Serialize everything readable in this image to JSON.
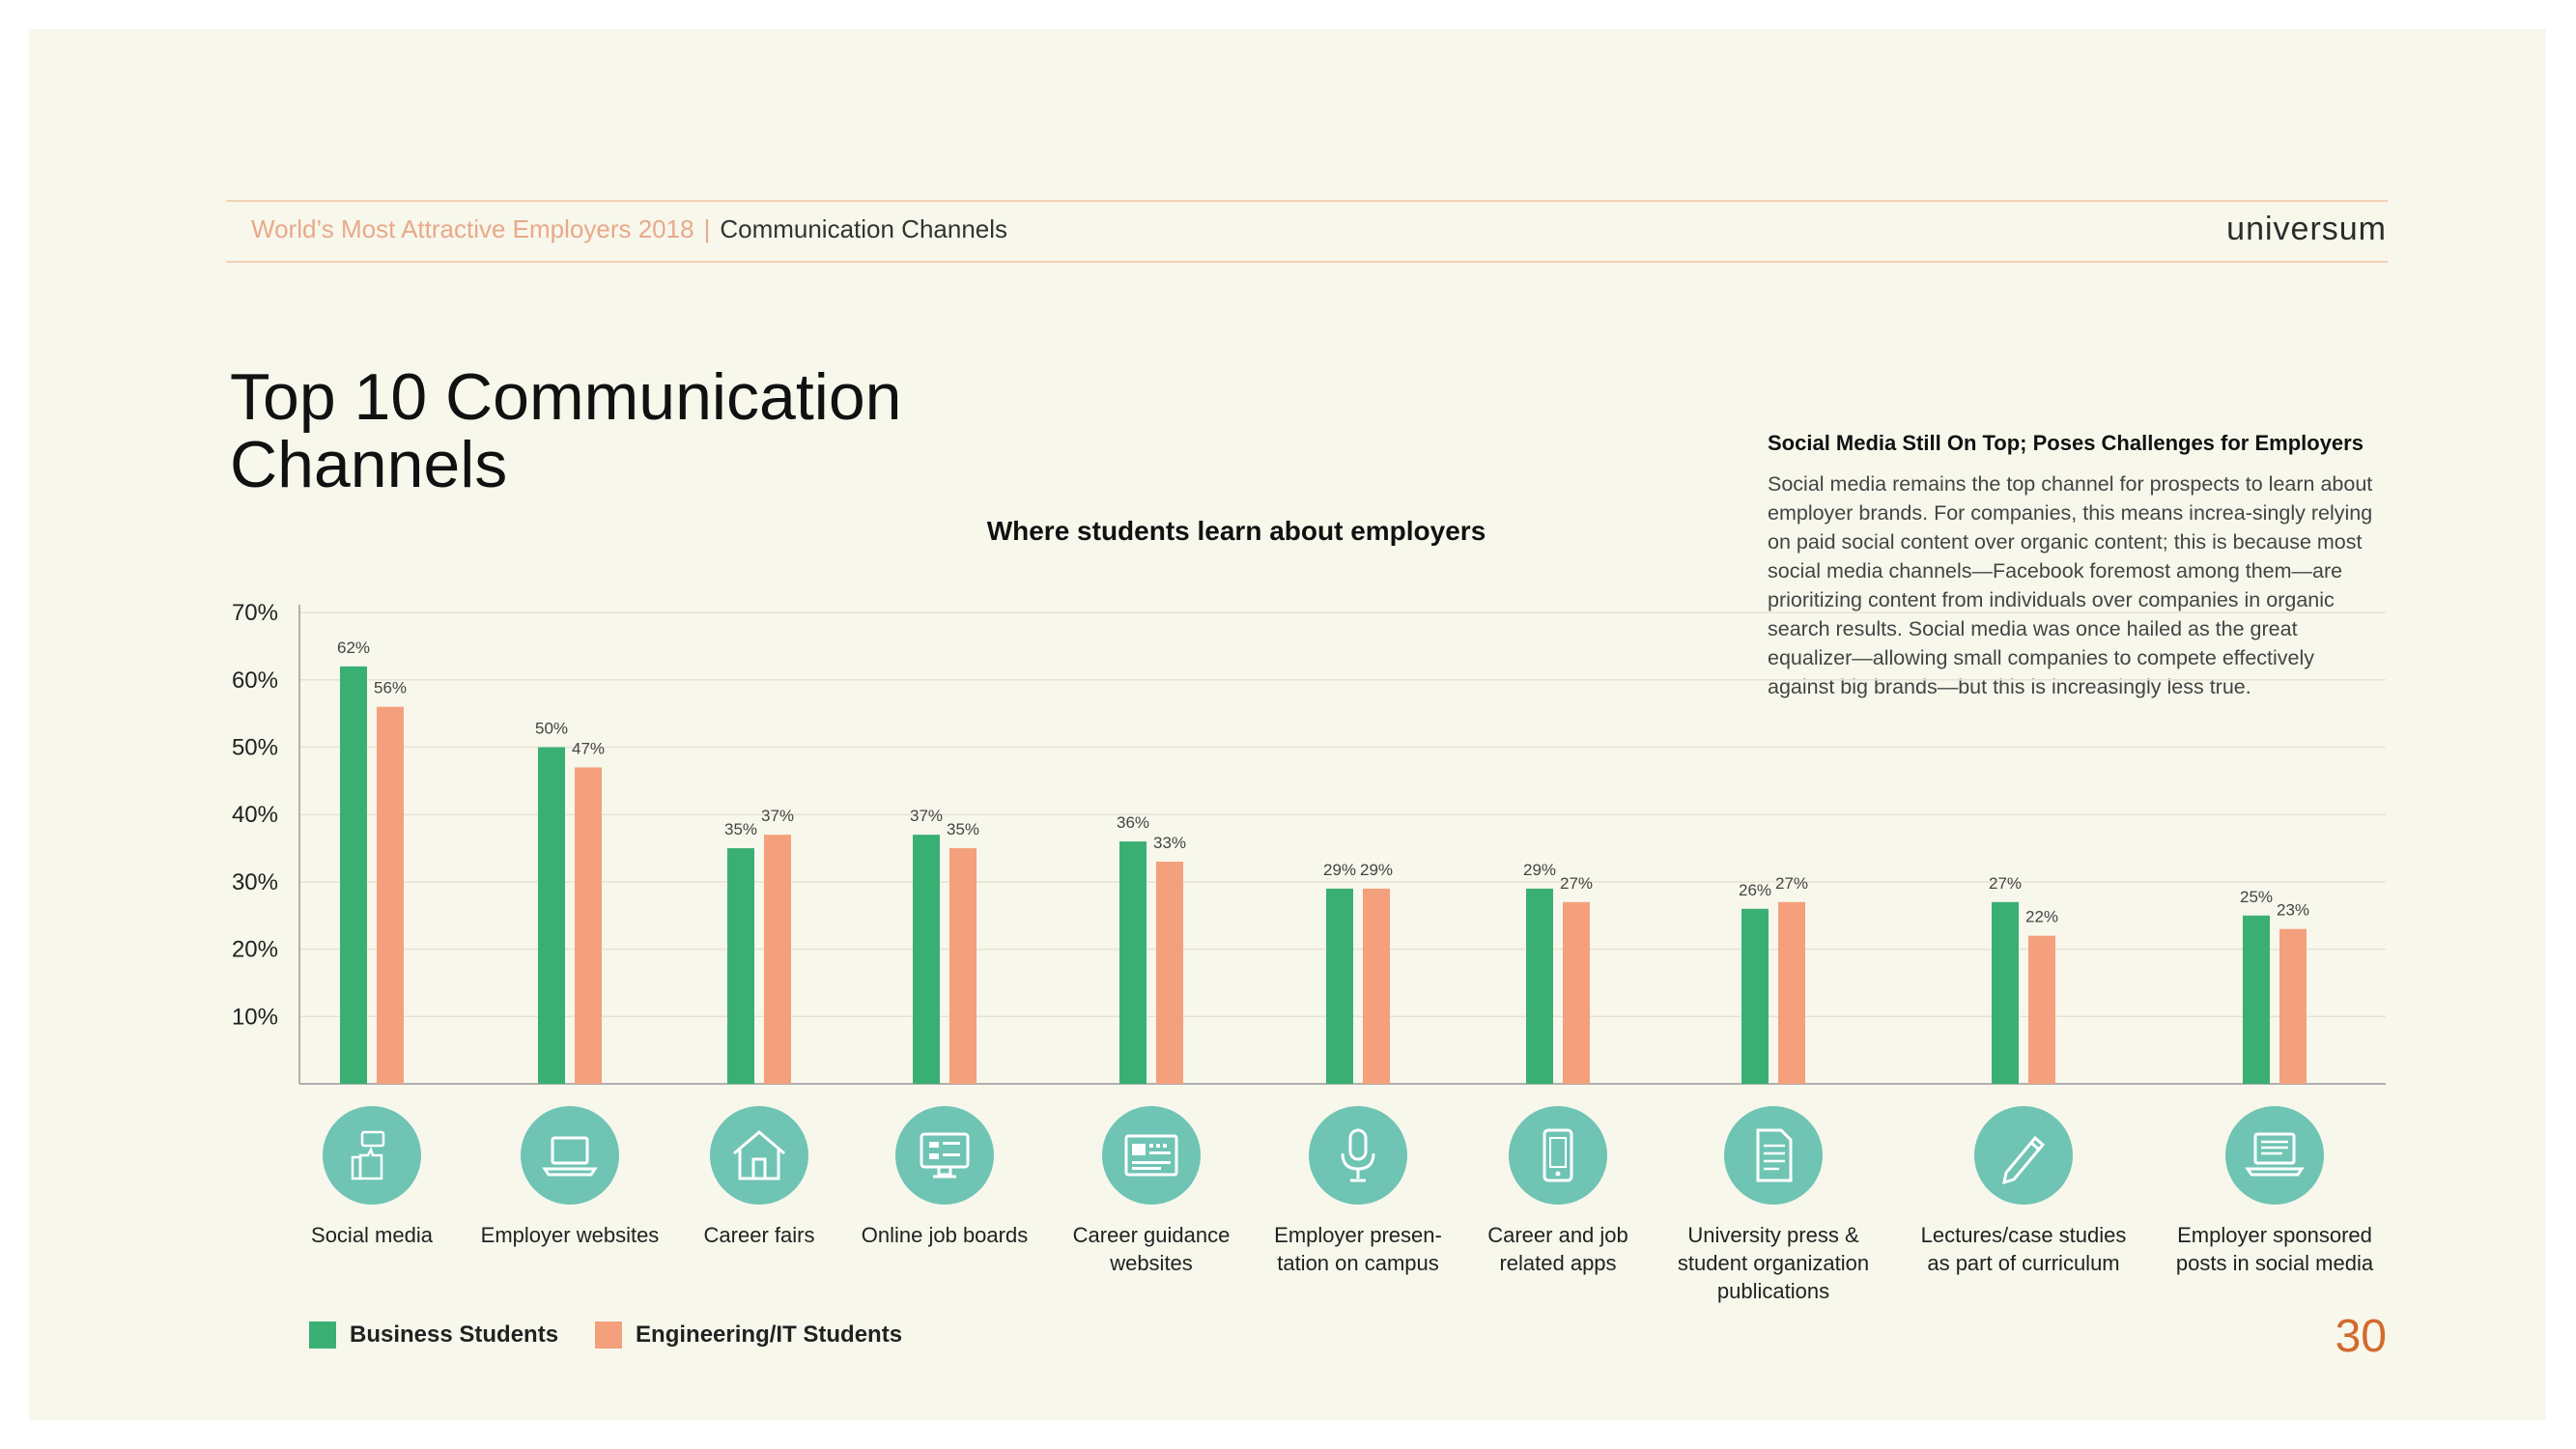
{
  "header": {
    "report": "World’s Most Attractive Employers 2018",
    "separator": "|",
    "section": "Communication Channels",
    "logo": "universum"
  },
  "page_title": "Top 10 Communication Channels",
  "sidebar": {
    "heading": "Social Media Still On Top; Poses Challenges for Employers",
    "body": "Social media remains the top channel for prospects to learn about employer brands. For companies, this means increa-singly relying on paid social content over organic content; this is because most social media channels—Facebook foremost among them—are prioritizing content from individuals over companies in organic search results. Social media was once hailed as the great equalizer—allowing small companies to compete effectively against big brands—but this is increasingly less true."
  },
  "colors": {
    "business": "#3aaf74",
    "engineering": "#f4a07c",
    "icon_bg": "#6fc4b4",
    "accent": "#d4692e"
  },
  "chart_data": {
    "type": "bar",
    "title": "Where students learn about employers",
    "categories": [
      "Social media",
      "Employer websites",
      "Career fairs",
      "Online job boards",
      "Career guidance websites",
      "Employer presen-tation on campus",
      "Career and job related apps",
      "University press & student organization publications",
      "Lectures/case studies as part of curriculum",
      "Employer sponsored posts in social media"
    ],
    "category_lines": [
      [
        "Social media"
      ],
      [
        "Employer websites"
      ],
      [
        "Career fairs"
      ],
      [
        "Online job boards"
      ],
      [
        "Career guidance",
        "websites"
      ],
      [
        "Employer presen-",
        "tation on campus"
      ],
      [
        "Career and job",
        "related apps"
      ],
      [
        "University press &",
        "student organization",
        "publications"
      ],
      [
        "Lectures/case studies",
        "as part of curriculum"
      ],
      [
        "Employer sponsored",
        "posts in social media"
      ]
    ],
    "icons": [
      "thumbs-up-icon",
      "laptop-icon",
      "tent-icon",
      "monitor-icon",
      "web-window-icon",
      "microphone-icon",
      "smartphone-icon",
      "document-icon",
      "pencil-icon",
      "laptop-list-icon"
    ],
    "series": [
      {
        "name": "Business Students",
        "values": [
          62,
          50,
          35,
          37,
          36,
          29,
          29,
          26,
          27,
          25
        ],
        "labels": [
          "62%",
          "50%",
          "35%",
          "37%",
          "36%",
          "29%",
          "29%",
          "26%",
          "27%",
          "25%"
        ]
      },
      {
        "name": "Engineering/IT Students",
        "values": [
          56,
          47,
          37,
          35,
          33,
          29,
          27,
          27,
          22,
          23
        ],
        "labels": [
          "56%",
          "47%",
          "37%",
          "35%",
          "33%",
          "29%",
          "27%",
          "27%",
          "22%",
          "23%"
        ]
      }
    ],
    "yticks": [
      "10%",
      "20%",
      "30%",
      "40%",
      "50%",
      "60%",
      "70%"
    ],
    "ytick_values": [
      10,
      20,
      30,
      40,
      50,
      60,
      70
    ],
    "ylim": [
      0,
      70
    ],
    "grid": true,
    "legend": "bottom-left"
  },
  "page_number": "30"
}
